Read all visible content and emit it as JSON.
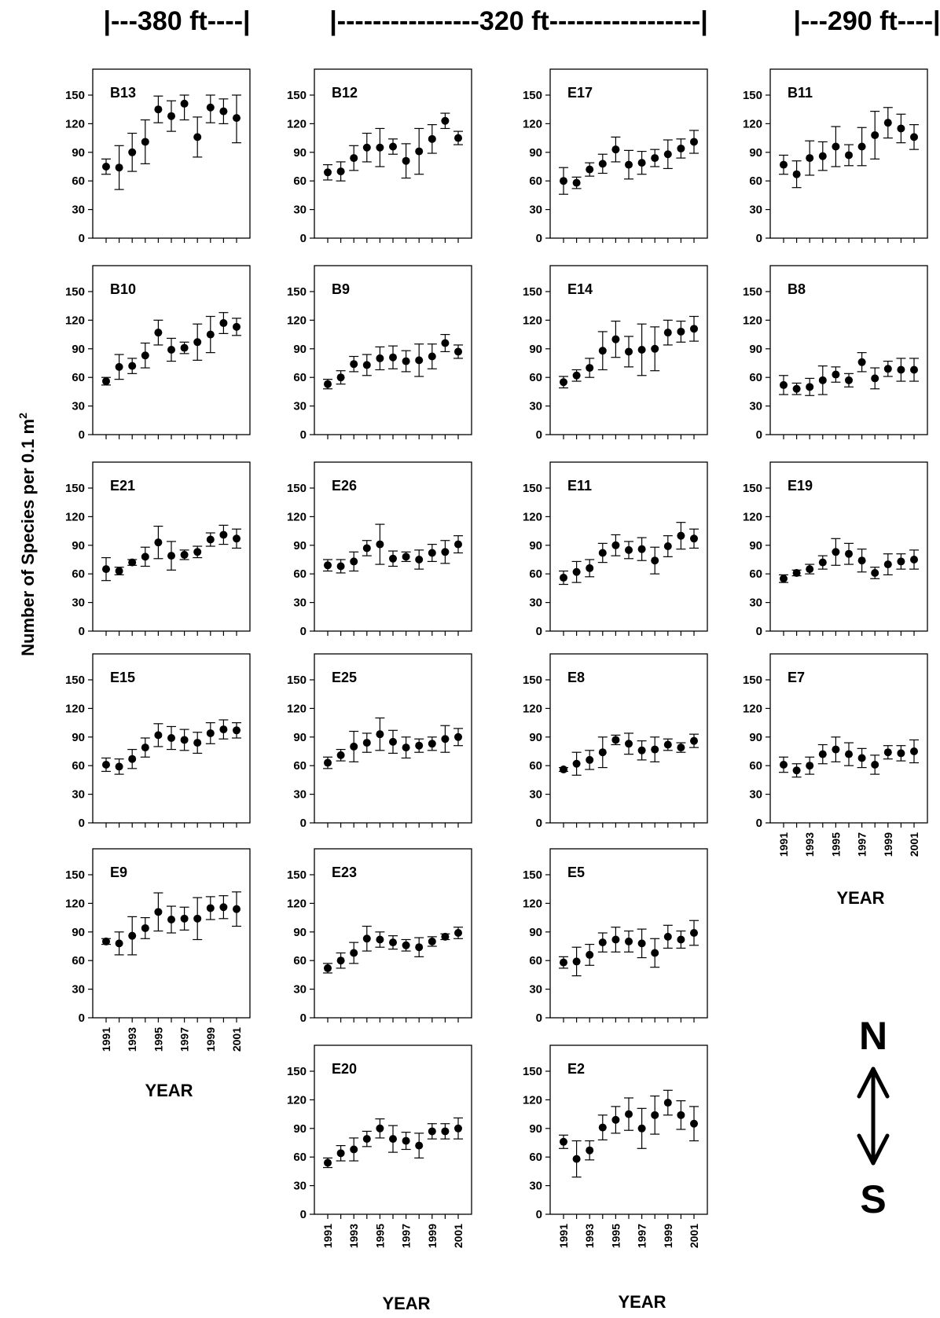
{
  "headers": {
    "h380": "|---380  ft----|",
    "h320": "|----------------320  ft-----------------|",
    "h290": "|---290  ft----|"
  },
  "ylabel": "Number of Species per 0.1 m",
  "ylabel_sup": "2",
  "xlabel": "YEAR",
  "compass": {
    "north": "N",
    "south": "S"
  },
  "chart_data": {
    "type": "scatter",
    "x": [
      1991,
      1992,
      1993,
      1994,
      1995,
      1996,
      1997,
      1998,
      1999,
      2000,
      2001
    ],
    "xticks": [
      "1991",
      "1993",
      "1995",
      "1997",
      "1999",
      "2001"
    ],
    "ylim": [
      0,
      150
    ],
    "yticks": [
      0,
      30,
      60,
      90,
      120,
      150
    ],
    "panels": [
      {
        "label": "B13",
        "mean": [
          75,
          74,
          90,
          101,
          135,
          128,
          141,
          106,
          137,
          133,
          126
        ],
        "sd": [
          8,
          23,
          20,
          23,
          14,
          16,
          17,
          21,
          16,
          13,
          26
        ]
      },
      {
        "label": "B12",
        "mean": [
          69,
          70,
          84,
          95,
          95,
          96,
          81,
          91,
          104,
          123,
          105
        ],
        "sd": [
          8,
          10,
          13,
          15,
          20,
          8,
          18,
          24,
          15,
          8,
          7
        ]
      },
      {
        "label": "E17",
        "mean": [
          60,
          58,
          72,
          78,
          93,
          77,
          79,
          84,
          88,
          94,
          101
        ],
        "sd": [
          14,
          6,
          7,
          10,
          13,
          15,
          12,
          9,
          15,
          10,
          12
        ]
      },
      {
        "label": "B11",
        "mean": [
          77,
          67,
          84,
          86,
          96,
          87,
          96,
          108,
          121,
          115,
          106
        ],
        "sd": [
          10,
          14,
          18,
          15,
          21,
          11,
          20,
          25,
          16,
          15,
          13
        ]
      },
      {
        "label": "B10",
        "mean": [
          56,
          71,
          72,
          83,
          107,
          89,
          91,
          97,
          105,
          117,
          113
        ],
        "sd": [
          4,
          13,
          8,
          13,
          13,
          12,
          6,
          19,
          19,
          11,
          9
        ]
      },
      {
        "label": "B9",
        "mean": [
          53,
          60,
          74,
          73,
          80,
          81,
          77,
          78,
          82,
          96,
          87
        ],
        "sd": [
          5,
          7,
          8,
          11,
          12,
          12,
          11,
          17,
          13,
          9,
          7
        ]
      },
      {
        "label": "E14",
        "mean": [
          55,
          62,
          70,
          88,
          100,
          87,
          89,
          90,
          107,
          108,
          111
        ],
        "sd": [
          6,
          6,
          10,
          20,
          19,
          16,
          27,
          23,
          13,
          11,
          13
        ]
      },
      {
        "label": "B8",
        "mean": [
          52,
          48,
          50,
          57,
          63,
          57,
          76,
          59,
          69,
          68,
          68
        ],
        "sd": [
          10,
          6,
          9,
          15,
          8,
          7,
          10,
          11,
          8,
          12,
          12
        ]
      },
      {
        "label": "E21",
        "mean": [
          65,
          63,
          72,
          78,
          93,
          79,
          80,
          83,
          96,
          101,
          97
        ],
        "sd": [
          12,
          4,
          3,
          10,
          17,
          15,
          5,
          6,
          7,
          10,
          10
        ]
      },
      {
        "label": "E26",
        "mean": [
          69,
          68,
          73,
          87,
          91,
          76,
          78,
          75,
          82,
          83,
          91
        ],
        "sd": [
          6,
          7,
          10,
          8,
          21,
          8,
          5,
          10,
          9,
          12,
          9
        ]
      },
      {
        "label": "E11",
        "mean": [
          56,
          62,
          66,
          82,
          90,
          85,
          86,
          74,
          89,
          100,
          97
        ],
        "sd": [
          7,
          11,
          9,
          10,
          11,
          9,
          12,
          14,
          11,
          14,
          10
        ]
      },
      {
        "label": "E19",
        "mean": [
          55,
          61,
          65,
          72,
          83,
          81,
          74,
          61,
          70,
          73,
          75
        ],
        "sd": [
          4,
          3,
          5,
          7,
          14,
          11,
          12,
          6,
          11,
          8,
          10
        ]
      },
      {
        "label": "E15",
        "mean": [
          61,
          59,
          67,
          79,
          92,
          89,
          87,
          84,
          94,
          98,
          97
        ],
        "sd": [
          7,
          8,
          10,
          10,
          12,
          12,
          11,
          11,
          11,
          10,
          8
        ]
      },
      {
        "label": "E25",
        "mean": [
          63,
          71,
          80,
          84,
          93,
          85,
          79,
          81,
          83,
          88,
          90
        ],
        "sd": [
          6,
          6,
          16,
          10,
          17,
          12,
          11,
          7,
          7,
          14,
          9
        ]
      },
      {
        "label": "E8",
        "mean": [
          56,
          62,
          66,
          74,
          87,
          83,
          76,
          77,
          82,
          79,
          86
        ],
        "sd": [
          2,
          12,
          10,
          16,
          5,
          11,
          10,
          13,
          6,
          5,
          7
        ]
      },
      {
        "label": "E7",
        "mean": [
          61,
          55,
          60,
          72,
          77,
          72,
          68,
          61,
          74,
          73,
          75
        ],
        "sd": [
          8,
          7,
          9,
          10,
          13,
          12,
          10,
          10,
          7,
          8,
          12
        ]
      },
      {
        "label": "E9",
        "mean": [
          80,
          78,
          86,
          94,
          111,
          103,
          104,
          104,
          115,
          116,
          114
        ],
        "sd": [
          3,
          12,
          20,
          11,
          20,
          14,
          12,
          22,
          12,
          12,
          18
        ]
      },
      {
        "label": "E23",
        "mean": [
          52,
          60,
          68,
          83,
          82,
          79,
          76,
          74,
          80,
          85,
          89
        ],
        "sd": [
          5,
          8,
          11,
          13,
          8,
          7,
          6,
          10,
          5,
          3,
          6
        ]
      },
      {
        "label": "E5",
        "mean": [
          58,
          59,
          66,
          79,
          82,
          80,
          78,
          68,
          85,
          82,
          89
        ],
        "sd": [
          6,
          15,
          11,
          10,
          13,
          11,
          15,
          15,
          12,
          9,
          13
        ]
      },
      {
        "label": "E20",
        "mean": [
          54,
          64,
          68,
          79,
          90,
          79,
          77,
          72,
          87,
          87,
          90
        ],
        "sd": [
          5,
          8,
          12,
          8,
          10,
          14,
          9,
          13,
          8,
          8,
          11
        ]
      },
      {
        "label": "E2",
        "mean": [
          76,
          58,
          67,
          91,
          99,
          105,
          90,
          104,
          117,
          104,
          95
        ],
        "sd": [
          7,
          19,
          10,
          13,
          14,
          17,
          21,
          20,
          13,
          15,
          18
        ]
      }
    ]
  }
}
